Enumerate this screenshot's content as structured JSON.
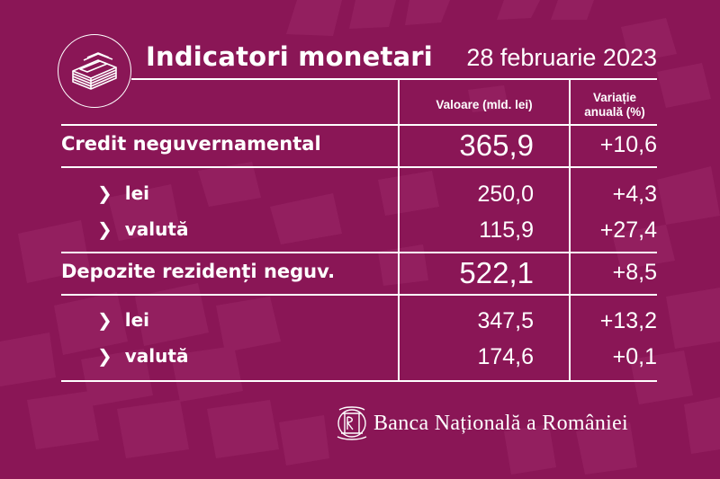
{
  "header": {
    "title": "Indicatori monetari",
    "date": "28 februarie 2023"
  },
  "columns": {
    "value": "Valoare (mld. lei)",
    "variation_line1": "Variație",
    "variation_line2": "anuală (%)"
  },
  "rows": [
    {
      "label": "Credit neguvernamental",
      "value": "365,9",
      "variation": "+10,6"
    },
    {
      "label": "lei",
      "value": "250,0",
      "variation": "+4,3"
    },
    {
      "label": "valută",
      "value": "115,9",
      "variation": "+27,4"
    },
    {
      "label": "Depozite rezidenți neguv.",
      "value": "522,1",
      "variation": "+8,5"
    },
    {
      "label": "lei",
      "value": "347,5",
      "variation": "+13,2"
    },
    {
      "label": "valută",
      "value": "174,6",
      "variation": "+0,1"
    }
  ],
  "footer": {
    "bank_name": "Banca Națională a României"
  },
  "icons": {
    "logo": "money-stack-icon",
    "bullet": "chevron-right-icon",
    "bank_logo": "bnr-monogram-icon"
  },
  "colors": {
    "background": "#8a1656",
    "pattern": "#9a2466",
    "text": "#ffffff"
  }
}
